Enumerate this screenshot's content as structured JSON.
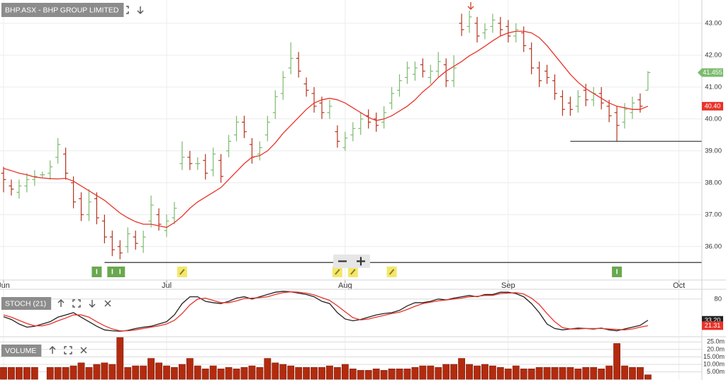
{
  "chart_data": [
    {
      "type": "ohlc",
      "title": "BHP.ASX - BHP GROUP LIMITED",
      "x": [
        0,
        1,
        2,
        3,
        4,
        5,
        6,
        7,
        8,
        9,
        10,
        11,
        12,
        13,
        14,
        15,
        16,
        17,
        18,
        19,
        20,
        21,
        22,
        23,
        24,
        25,
        26,
        27,
        28,
        29,
        30,
        31,
        32,
        33,
        34,
        35,
        36,
        37,
        38,
        39,
        40,
        41,
        42,
        43,
        44,
        45,
        46,
        47,
        48,
        49,
        50,
        51,
        52,
        53,
        54,
        55,
        56,
        57,
        58,
        59,
        60,
        61,
        62,
        63,
        64,
        65,
        66,
        67,
        68,
        69,
        70,
        71,
        72,
        73,
        74,
        75,
        76,
        77,
        78,
        79,
        80,
        81,
        82,
        83
      ],
      "open": [
        38.3,
        37.9,
        37.7,
        37.9,
        38.1,
        38.25,
        38.3,
        38.8,
        38.9,
        38.0,
        37.5,
        37.0,
        37.5,
        36.8,
        36.3,
        36.0,
        36.0,
        36.3,
        36.0,
        36.8,
        37.0,
        36.5,
        36.9,
        38.6,
        38.8,
        38.6,
        38.7,
        38.4,
        38.7,
        39.0,
        39.5,
        39.9,
        39.2,
        38.9,
        39.5,
        40.2,
        40.8,
        41.6,
        41.9,
        41.1,
        40.8,
        40.5,
        40.2,
        39.6,
        39.1,
        39.5,
        39.7,
        40.1,
        40.0,
        39.9,
        40.5,
        40.9,
        41.3,
        41.4,
        41.7,
        41.3,
        41.5,
        41.7,
        41.2,
        43.0,
        42.9,
        43.0,
        42.7,
        42.9,
        43.0,
        42.9,
        42.6,
        42.7,
        42.2,
        41.6,
        41.5,
        41.2,
        40.7,
        40.5,
        40.4,
        40.9,
        40.6,
        40.8,
        40.4,
        40.2,
        39.9,
        40.2,
        40.6,
        40.9
      ],
      "high": [
        38.5,
        38.1,
        38.1,
        38.3,
        38.4,
        38.35,
        38.7,
        39.4,
        39.1,
        38.2,
        37.7,
        37.8,
        37.7,
        37.0,
        36.5,
        36.2,
        36.6,
        36.5,
        36.5,
        37.6,
        37.2,
        37.0,
        37.4,
        39.3,
        39.0,
        38.8,
        38.9,
        39.1,
        38.9,
        39.5,
        40.1,
        40.1,
        39.4,
        39.3,
        40.1,
        40.9,
        41.5,
        42.4,
        42.1,
        41.3,
        41.0,
        40.7,
        40.6,
        39.8,
        39.6,
        39.9,
        40.2,
        40.3,
        40.2,
        40.4,
        41.0,
        41.4,
        41.8,
        41.8,
        41.9,
        41.7,
        42.1,
        41.9,
        42.0,
        43.3,
        43.4,
        43.2,
        43.0,
        43.3,
        43.2,
        43.1,
        43.0,
        42.9,
        42.4,
        41.8,
        41.7,
        41.4,
        40.9,
        40.7,
        40.9,
        41.1,
        41.0,
        41.0,
        40.6,
        40.4,
        40.5,
        40.7,
        40.8,
        41.5
      ],
      "low": [
        37.7,
        37.6,
        37.5,
        37.7,
        37.9,
        38.15,
        38.1,
        38.6,
        38.1,
        37.2,
        36.8,
        36.8,
        36.7,
        36.1,
        35.7,
        35.6,
        35.8,
        35.9,
        35.8,
        36.6,
        36.5,
        36.3,
        36.7,
        38.4,
        38.4,
        38.4,
        38.1,
        38.2,
        38.0,
        38.8,
        39.3,
        39.4,
        38.6,
        38.7,
        39.3,
        40.0,
        40.6,
        41.4,
        41.3,
        40.7,
        40.2,
        40.0,
        40.0,
        39.1,
        39.0,
        39.3,
        39.5,
        39.7,
        39.6,
        39.7,
        40.3,
        40.7,
        41.1,
        41.2,
        41.3,
        41.1,
        41.3,
        41.0,
        41.0,
        42.6,
        42.7,
        42.4,
        42.5,
        42.7,
        42.6,
        42.4,
        42.4,
        42.1,
        41.4,
        41.0,
        41.1,
        40.6,
        40.1,
        40.1,
        40.2,
        40.4,
        40.4,
        40.3,
        39.9,
        39.3,
        39.7,
        40.0,
        40.2,
        40.9
      ],
      "close": [
        38.1,
        37.8,
        37.9,
        38.1,
        38.2,
        38.25,
        38.5,
        39.2,
        38.3,
        37.4,
        37.0,
        37.4,
        36.9,
        36.3,
        35.9,
        35.8,
        36.4,
        36.1,
        36.3,
        37.3,
        36.7,
        36.8,
        37.2,
        38.8,
        38.6,
        38.6,
        38.3,
        38.9,
        38.2,
        39.3,
        39.9,
        39.6,
        38.8,
        39.1,
        39.9,
        40.7,
        41.3,
        41.9,
        41.5,
        40.9,
        40.4,
        40.2,
        40.4,
        39.3,
        39.4,
        39.7,
        40.0,
        39.9,
        39.8,
        40.2,
        40.8,
        41.2,
        41.6,
        41.6,
        41.5,
        41.5,
        41.8,
        41.2,
        41.6,
        42.8,
        43.2,
        42.6,
        42.8,
        43.1,
        42.8,
        42.6,
        42.8,
        42.3,
        41.6,
        41.2,
        41.3,
        40.8,
        40.3,
        40.3,
        40.7,
        40.6,
        40.8,
        40.5,
        40.1,
        39.8,
        40.3,
        40.5,
        40.4,
        41.455
      ],
      "up_color": "#7dbb6e",
      "down_color": "#b5331d",
      "last_tag": "41.455",
      "series": [
        {
          "color": "#e8332a",
          "tag": "40.40",
          "values": [
            38.45,
            38.38,
            38.3,
            38.25,
            38.18,
            38.15,
            38.13,
            38.12,
            38.14,
            38.05,
            37.9,
            37.75,
            37.6,
            37.45,
            37.25,
            37.05,
            36.9,
            36.78,
            36.7,
            36.7,
            36.65,
            36.6,
            36.75,
            36.95,
            37.2,
            37.4,
            37.55,
            37.7,
            37.85,
            38.1,
            38.35,
            38.6,
            38.8,
            38.85,
            39.0,
            39.25,
            39.55,
            39.8,
            40.05,
            40.3,
            40.5,
            40.6,
            40.65,
            40.6,
            40.5,
            40.35,
            40.2,
            40.05,
            39.95,
            40.0,
            40.1,
            40.25,
            40.4,
            40.6,
            40.85,
            41.05,
            41.3,
            41.5,
            41.65,
            41.8,
            41.98,
            42.12,
            42.28,
            42.45,
            42.6,
            42.7,
            42.75,
            42.75,
            42.7,
            42.55,
            42.3,
            42.0,
            41.7,
            41.4,
            41.15,
            40.95,
            40.8,
            40.65,
            40.5,
            40.4,
            40.35,
            40.3,
            40.3,
            40.4
          ]
        }
      ],
      "xlim": [
        -0.46,
        89.95
      ],
      "xticks": [
        {
          "value": 0,
          "label": "Jun"
        },
        {
          "value": 21,
          "label": "Jul"
        },
        {
          "value": 44,
          "label": "Aug"
        },
        {
          "value": 65,
          "label": "Sep"
        },
        {
          "value": 87,
          "label": "Oct"
        }
      ],
      "ylim": [
        34.95,
        43.73
      ],
      "yticks": [
        {
          "value": 36,
          "label": "36.00"
        },
        {
          "value": 37,
          "label": "37.00"
        },
        {
          "value": 38,
          "label": "38.00"
        },
        {
          "value": 39,
          "label": "39.00"
        },
        {
          "value": 40,
          "label": "40.00"
        },
        {
          "value": 41,
          "label": "41.00"
        },
        {
          "value": 42,
          "label": "42.00"
        },
        {
          "value": 43,
          "label": "43.00"
        }
      ],
      "grid": true,
      "hlines": [
        {
          "value": 39.3,
          "from": 73
        },
        {
          "value": 35.5,
          "from": 13
        }
      ],
      "events": [
        {
          "x": 12,
          "kind": "info",
          "label": "I"
        },
        {
          "x": 14,
          "kind": "info",
          "label": "I"
        },
        {
          "x": 15,
          "kind": "info",
          "label": "I"
        },
        {
          "x": 23,
          "kind": "note"
        },
        {
          "x": 43,
          "kind": "note"
        },
        {
          "x": 45,
          "kind": "note"
        },
        {
          "x": 50,
          "kind": "note"
        },
        {
          "x": 79,
          "kind": "info",
          "label": "I"
        }
      ]
    },
    {
      "type": "line",
      "title": "STOCH (21)",
      "x": [
        0,
        1,
        2,
        3,
        4,
        5,
        6,
        7,
        8,
        9,
        10,
        11,
        12,
        13,
        14,
        15,
        16,
        17,
        18,
        19,
        20,
        21,
        22,
        23,
        24,
        25,
        26,
        27,
        28,
        29,
        30,
        31,
        32,
        33,
        34,
        35,
        36,
        37,
        38,
        39,
        40,
        41,
        42,
        43,
        44,
        45,
        46,
        47,
        48,
        49,
        50,
        51,
        52,
        53,
        54,
        55,
        56,
        57,
        58,
        59,
        60,
        61,
        62,
        63,
        64,
        65,
        66,
        67,
        68,
        69,
        70,
        71,
        72,
        73,
        74,
        75,
        76,
        77,
        78,
        79,
        80,
        81,
        82,
        83
      ],
      "series": [
        {
          "color": "#222222",
          "tag": "33.20",
          "values": [
            41,
            35,
            25,
            18,
            20,
            25,
            30,
            40,
            45,
            50,
            40,
            30,
            20,
            12,
            10,
            9,
            11,
            15,
            18,
            20,
            25,
            30,
            45,
            70,
            85,
            85,
            75,
            72,
            70,
            75,
            82,
            85,
            80,
            85,
            90,
            95,
            97,
            96,
            93,
            90,
            85,
            75,
            70,
            50,
            36,
            32,
            35,
            40,
            45,
            48,
            50,
            55,
            65,
            72,
            72,
            75,
            80,
            78,
            82,
            85,
            88,
            85,
            90,
            90,
            95,
            95,
            92,
            85,
            70,
            50,
            25,
            15,
            12,
            14,
            16,
            15,
            14,
            16,
            12,
            10,
            14,
            18,
            22,
            33.2
          ]
        },
        {
          "color": "#e8332a",
          "tag": "21.31",
          "values": [
            45,
            40,
            33,
            26,
            21,
            21,
            25,
            32,
            38,
            45,
            45,
            40,
            30,
            21,
            14,
            10,
            10,
            12,
            15,
            18,
            21,
            25,
            33,
            48,
            67,
            80,
            82,
            77,
            72,
            72,
            76,
            81,
            82,
            83,
            85,
            90,
            94,
            96,
            95,
            93,
            89,
            83,
            77,
            65,
            52,
            39,
            34,
            36,
            40,
            44,
            48,
            51,
            57,
            64,
            70,
            73,
            76,
            78,
            80,
            82,
            85,
            86,
            88,
            88,
            92,
            93,
            94,
            91,
            82,
            68,
            48,
            30,
            17,
            14,
            14,
            15,
            15,
            15,
            14,
            13,
            12,
            14,
            18,
            21.31
          ]
        }
      ],
      "xlim": [
        -0.46,
        89.95
      ],
      "ylim": [
        0,
        100
      ],
      "yticks": [
        80
      ],
      "grid": true
    },
    {
      "type": "bar",
      "title": "VOLUME",
      "x": [
        0,
        1,
        2,
        3,
        4,
        5,
        6,
        7,
        8,
        9,
        10,
        11,
        12,
        13,
        14,
        15,
        16,
        17,
        18,
        19,
        20,
        21,
        22,
        23,
        24,
        25,
        26,
        27,
        28,
        29,
        30,
        31,
        32,
        33,
        34,
        35,
        36,
        37,
        38,
        39,
        40,
        41,
        42,
        43,
        44,
        45,
        46,
        47,
        48,
        49,
        50,
        51,
        52,
        53,
        54,
        55,
        56,
        57,
        58,
        59,
        60,
        61,
        62,
        63,
        64,
        65,
        66,
        67,
        68,
        69,
        70,
        71,
        72,
        73,
        74,
        75,
        76,
        77,
        78,
        79,
        80,
        81,
        82,
        83
      ],
      "values": [
        8,
        8,
        8,
        8,
        8,
        0,
        8,
        8,
        8,
        9,
        11,
        8,
        10,
        11,
        10,
        28,
        8,
        9,
        9,
        14,
        11,
        9,
        8,
        10,
        14,
        9,
        7,
        9,
        7,
        8,
        7,
        8,
        9,
        8,
        14,
        11,
        10,
        9,
        8,
        8,
        8,
        8,
        9,
        8,
        10,
        7,
        6,
        6,
        7,
        6,
        7,
        7,
        7,
        8,
        9,
        9,
        8,
        10,
        10,
        14,
        10,
        9,
        10,
        9,
        8,
        7,
        9,
        7,
        7,
        8,
        8,
        8,
        8,
        8,
        7,
        8,
        8,
        7,
        9,
        24,
        9,
        8,
        8,
        3
      ],
      "color": "#b32b0f",
      "xlim": [
        -0.46,
        89.95
      ],
      "ylim": [
        0,
        28.5
      ],
      "yticks": [
        {
          "value": 5,
          "label": "5.00m"
        },
        {
          "value": 10,
          "label": "10.00m"
        },
        {
          "value": 15,
          "label": "15.00m"
        },
        {
          "value": 20,
          "label": "20.0m"
        },
        {
          "value": 25,
          "label": "25.0m"
        }
      ],
      "grid": true
    }
  ]
}
